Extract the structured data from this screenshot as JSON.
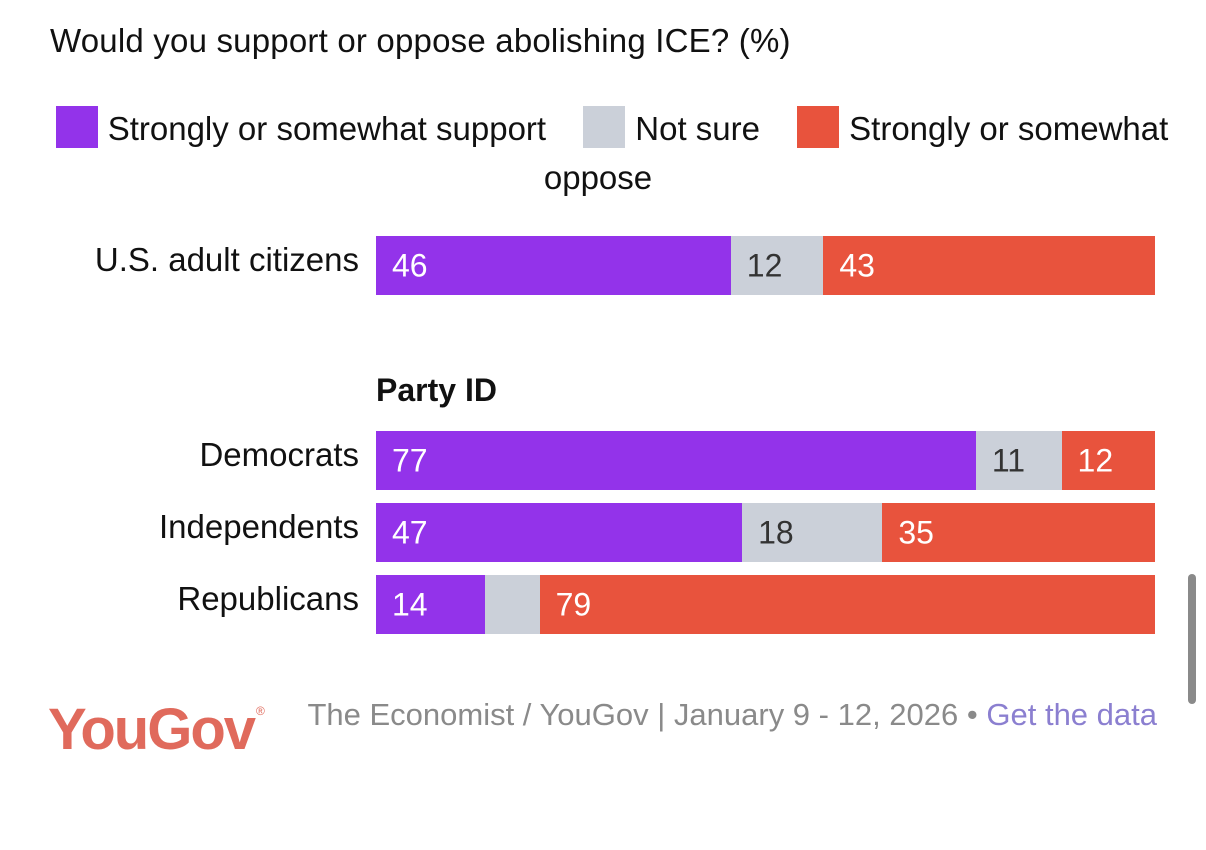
{
  "chart_data": {
    "type": "bar",
    "orientation": "horizontal",
    "stacked": true,
    "title": "Would you support or oppose abolishing ICE? (%)",
    "legend": [
      {
        "name": "Strongly or somewhat support",
        "color": "#9333ea"
      },
      {
        "name": "Not sure",
        "color": "#cbd0d9"
      },
      {
        "name": "Strongly or somewhat oppose",
        "color": "#e8533d"
      }
    ],
    "legend_position": "top",
    "groups": [
      {
        "title": "",
        "rows": [
          {
            "label": "U.S. adult citizens",
            "values": [
              46,
              12,
              43
            ],
            "labels": [
              "46",
              "12",
              "43"
            ]
          }
        ]
      },
      {
        "title": "Party ID",
        "rows": [
          {
            "label": "Democrats",
            "values": [
              77,
              11,
              12
            ],
            "labels": [
              "77",
              "11",
              "12"
            ]
          },
          {
            "label": "Independents",
            "values": [
              47,
              18,
              35
            ],
            "labels": [
              "47",
              "18",
              "35"
            ]
          },
          {
            "label": "Republicans",
            "values": [
              14,
              7,
              79
            ],
            "labels": [
              "14",
              "",
              "79"
            ]
          }
        ]
      }
    ],
    "xlim": [
      0,
      100
    ],
    "grid": false
  },
  "footer": {
    "logo": "YouGov",
    "logo_mark": "®",
    "source": "The Economist / YouGov | January 9 - 12, 2026 •",
    "link_label": "Get the data"
  },
  "colors": {
    "support": "#9333ea",
    "not_sure": "#cbd0d9",
    "oppose": "#e8533d",
    "label_on_dark": "#ffffff",
    "label_on_light": "#333333",
    "logo": "#e06a5c",
    "link": "#8b7fd0"
  }
}
